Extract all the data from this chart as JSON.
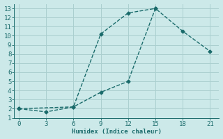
{
  "title": "",
  "xlabel": "Humidex (Indice chaleur)",
  "ylabel": "",
  "background_color": "#cce9e9",
  "grid_color": "#aacfcf",
  "line_color": "#1a6b6b",
  "line1_x": [
    0,
    3,
    6,
    9,
    12,
    15
  ],
  "line1_y": [
    2,
    1.65,
    2.2,
    10.2,
    12.5,
    13
  ],
  "line2_x": [
    0,
    6,
    9,
    12,
    15,
    18,
    21
  ],
  "line2_y": [
    2,
    2.2,
    3.8,
    5.0,
    13,
    10.5,
    8.3
  ],
  "xlim": [
    -0.5,
    22
  ],
  "ylim": [
    1,
    13.5
  ],
  "xticks": [
    0,
    3,
    6,
    9,
    12,
    15,
    18,
    21
  ],
  "yticks": [
    1,
    2,
    3,
    4,
    5,
    6,
    7,
    8,
    9,
    10,
    11,
    12,
    13
  ],
  "marker": "D",
  "marker_size": 2.5,
  "line_width": 1.0,
  "font_size": 6.5
}
